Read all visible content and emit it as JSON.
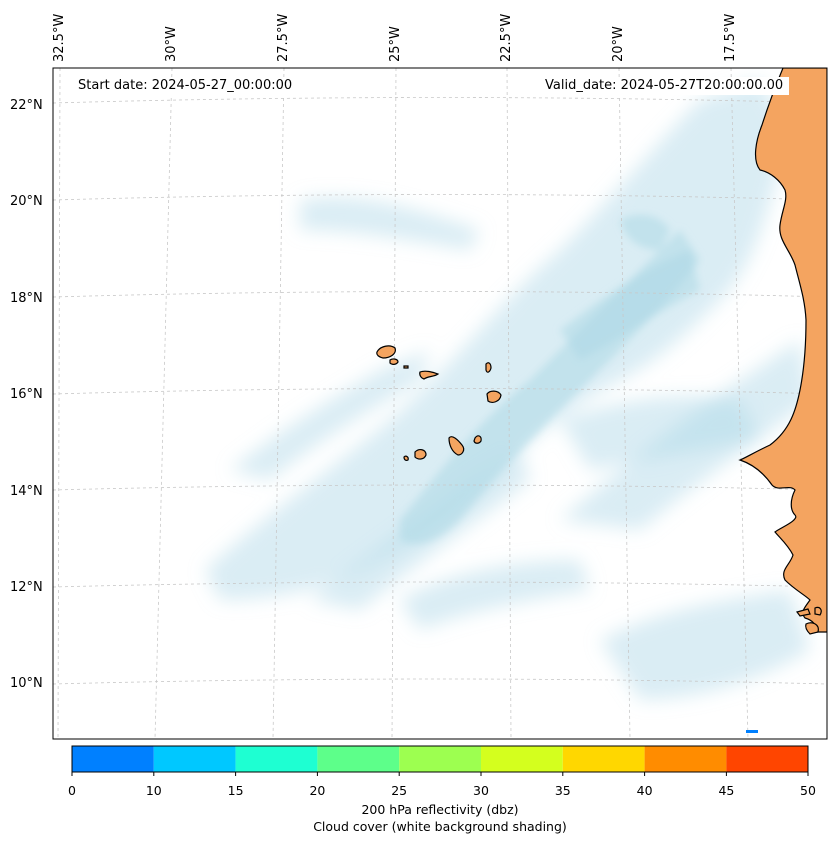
{
  "map": {
    "start_date": "Start date: 2024-05-27_00:00:00",
    "valid_date": "Valid_date: 2024-05-27T20:00:00.00",
    "longitude_labels": [
      "32.5°W",
      "30°W",
      "27.5°W",
      "25°W",
      "22.5°W",
      "20°W",
      "17.5°W"
    ],
    "latitude_labels": [
      "22°N",
      "20°N",
      "18°N",
      "16°N",
      "14°N",
      "12°N",
      "10°N"
    ],
    "colors": {
      "land_fill": "#f4a460",
      "coastline": "#000000",
      "cloud": "#add8e6",
      "gridline": "#c8c8c8"
    }
  },
  "colorbar": {
    "ticks": [
      "0",
      "10",
      "15",
      "20",
      "25",
      "30",
      "35",
      "40",
      "45",
      "50"
    ],
    "colors": [
      "#0080ff",
      "#00c8ff",
      "#1effd2",
      "#5dff8a",
      "#9dff50",
      "#d4ff1e",
      "#ffd700",
      "#ff8c00",
      "#ff4500"
    ],
    "title_line1": "200 hPa reflectivity (dbz)",
    "title_line2": "Cloud cover (white background shading)"
  }
}
